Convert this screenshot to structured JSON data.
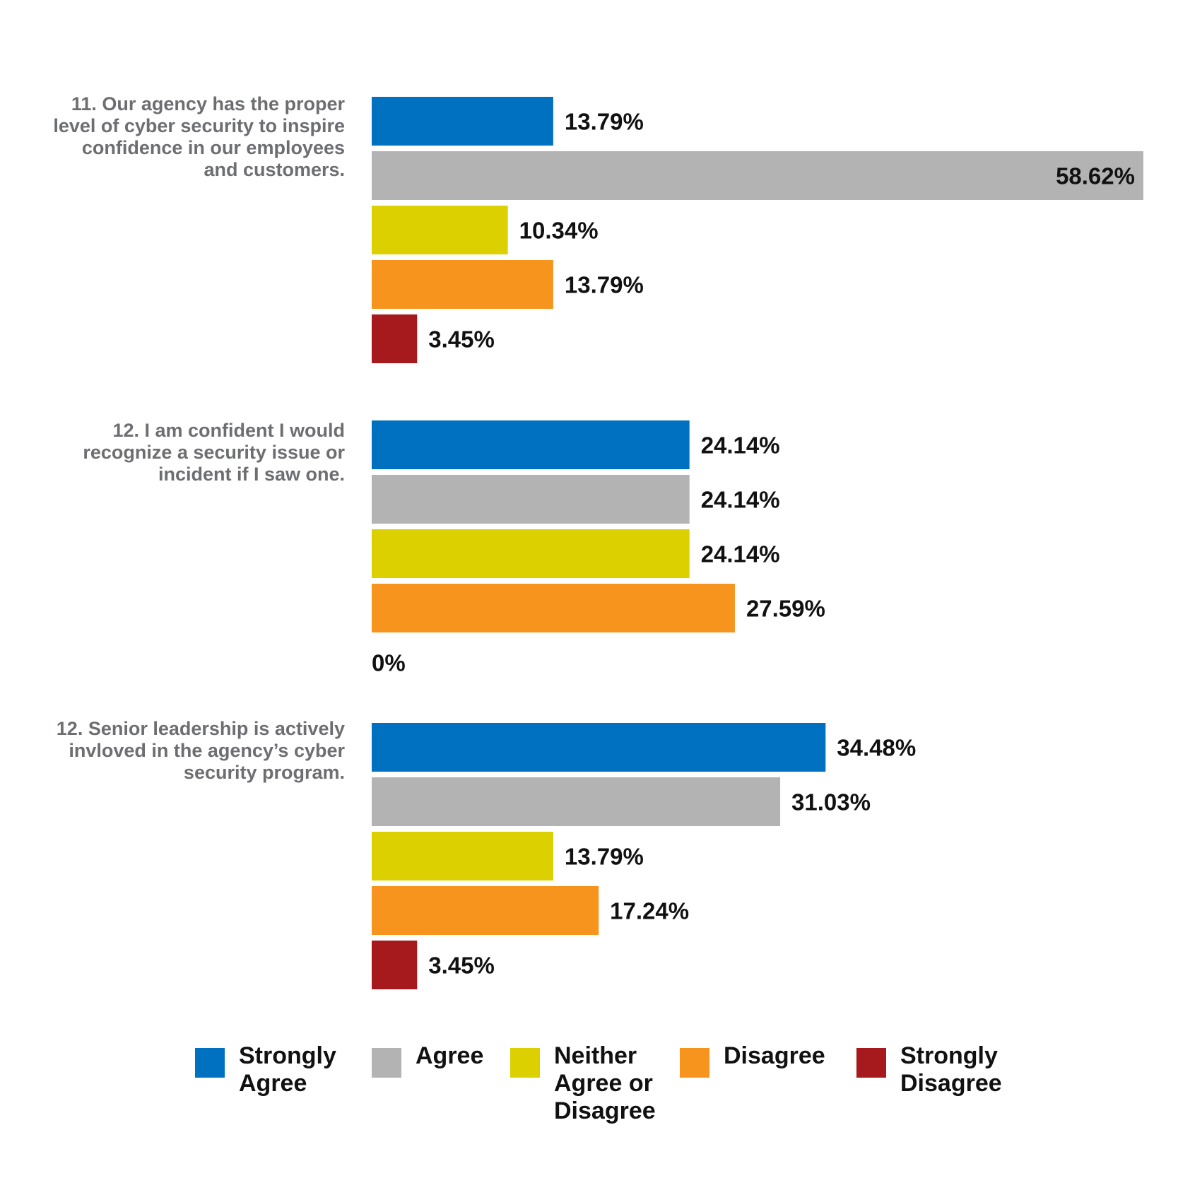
{
  "chart_data": {
    "type": "bar",
    "orientation": "horizontal",
    "xlim": [
      0,
      58.62
    ],
    "legend_position": "bottom",
    "grid": false,
    "categories": [
      "Strongly Agree",
      "Agree",
      "Neither Agree or Disagree",
      "Disagree",
      "Strongly Disagree"
    ],
    "colors": [
      "#0070c0",
      "#b3b3b3",
      "#dcd000",
      "#f7941d",
      "#a6191c"
    ],
    "groups": [
      {
        "question": "11. Our agency has the proper level of cyber security to inspire confidence in our employees and customers.",
        "values": [
          13.79,
          58.62,
          10.34,
          13.79,
          3.45
        ],
        "labels": [
          "13.79%",
          "58.62%",
          "10.34%",
          "13.79%",
          "3.45%"
        ]
      },
      {
        "question": "12. I am confident I would recognize a security issue or incident if I saw one.",
        "values": [
          24.14,
          24.14,
          24.14,
          27.59,
          0
        ],
        "labels": [
          "24.14%",
          "24.14%",
          "24.14%",
          "27.59%",
          "0%"
        ]
      },
      {
        "question": "12. Senior leadership is actively invloved in the agency’s cyber security program.",
        "values": [
          34.48,
          31.03,
          13.79,
          17.24,
          3.45
        ],
        "labels": [
          "34.48%",
          "31.03%",
          "13.79%",
          "17.24%",
          "3.45%"
        ]
      }
    ],
    "legend": [
      {
        "name": "Strongly Agree",
        "color": "#0070c0"
      },
      {
        "name": "Agree",
        "color": "#b3b3b3"
      },
      {
        "name": "Neither Agree or Disagree",
        "color": "#dcd000"
      },
      {
        "name": "Disagree",
        "color": "#f7941d"
      },
      {
        "name": "Strongly Disagree",
        "color": "#a6191c"
      }
    ]
  }
}
